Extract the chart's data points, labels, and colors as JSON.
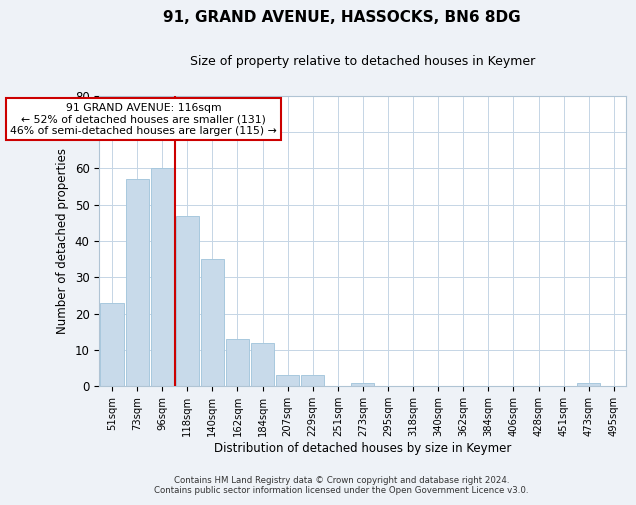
{
  "title": "91, GRAND AVENUE, HASSOCKS, BN6 8DG",
  "subtitle": "Size of property relative to detached houses in Keymer",
  "xlabel": "Distribution of detached houses by size in Keymer",
  "ylabel": "Number of detached properties",
  "bin_labels": [
    "51sqm",
    "73sqm",
    "96sqm",
    "118sqm",
    "140sqm",
    "162sqm",
    "184sqm",
    "207sqm",
    "229sqm",
    "251sqm",
    "273sqm",
    "295sqm",
    "318sqm",
    "340sqm",
    "362sqm",
    "384sqm",
    "406sqm",
    "428sqm",
    "451sqm",
    "473sqm",
    "495sqm"
  ],
  "bar_heights": [
    23,
    57,
    60,
    47,
    35,
    13,
    12,
    3,
    3,
    0,
    1,
    0,
    0,
    0,
    0,
    0,
    0,
    0,
    0,
    1,
    0
  ],
  "bar_color": "#c8daea",
  "bar_edge_color": "#a8c8de",
  "vline_color": "#cc0000",
  "vline_index": 2.5,
  "annotation_text_line1": "91 GRAND AVENUE: 116sqm",
  "annotation_text_line2": "← 52% of detached houses are smaller (131)",
  "annotation_text_line3": "46% of semi-detached houses are larger (115) →",
  "ylim": [
    0,
    80
  ],
  "yticks": [
    0,
    10,
    20,
    30,
    40,
    50,
    60,
    70,
    80
  ],
  "footnote_line1": "Contains HM Land Registry data © Crown copyright and database right 2024.",
  "footnote_line2": "Contains public sector information licensed under the Open Government Licence v3.0.",
  "bg_color": "#eef2f7",
  "plot_bg_color": "#ffffff",
  "grid_color": "#c5d5e5"
}
